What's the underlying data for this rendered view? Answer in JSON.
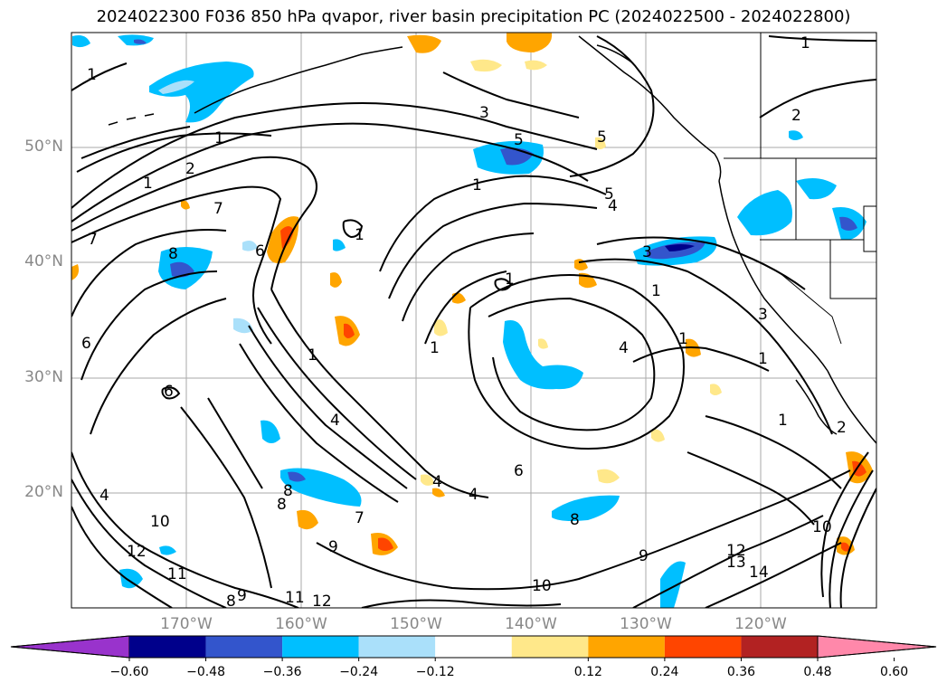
{
  "title": "2024022300 F036 850 hPa qvapor, river basin precipitation PC (2024022500 - 2024022800)",
  "map": {
    "lat_ticks": [
      "50°N",
      "40°N",
      "30°N",
      "20°N"
    ],
    "lon_ticks": [
      "170°W",
      "160°W",
      "150°W",
      "140°W",
      "130°W",
      "120°W"
    ],
    "contour_labels": [
      "1",
      "2",
      "3",
      "4",
      "5",
      "6",
      "7",
      "8",
      "9",
      "10",
      "11",
      "12",
      "13",
      "14"
    ]
  },
  "colorbar": {
    "colors": [
      "#9933cc",
      "#00008b",
      "#3355cc",
      "#00bfff",
      "#aae0fa",
      "#ffffff",
      "#ffe88a",
      "#ffa500",
      "#ff4500",
      "#b22222",
      "#ff88aa"
    ],
    "tick_labels": [
      "−0.60",
      "−0.48",
      "−0.36",
      "−0.24",
      "−0.12",
      "0.12",
      "0.24",
      "0.36",
      "0.48",
      "0.60"
    ]
  }
}
